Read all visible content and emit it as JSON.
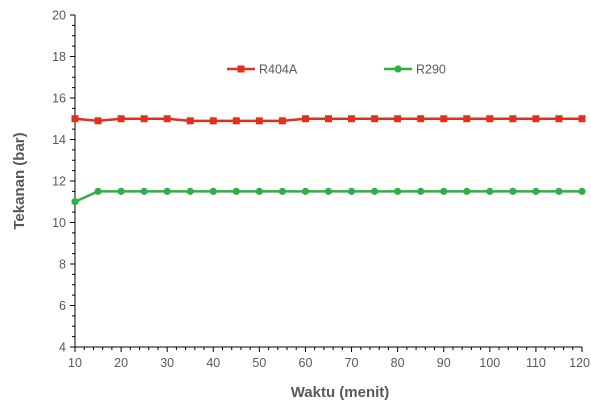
{
  "chart_data": {
    "type": "line",
    "title": "",
    "xlabel": "Waktu (menit)",
    "ylabel": "Tekanan (bar)",
    "x": [
      10,
      15,
      20,
      25,
      30,
      35,
      40,
      45,
      50,
      55,
      60,
      65,
      70,
      75,
      80,
      85,
      90,
      95,
      100,
      105,
      110,
      115,
      120
    ],
    "xlim": [
      10,
      120
    ],
    "ylim": [
      4,
      20
    ],
    "xticks": [
      "10",
      "20",
      "30",
      "40",
      "50",
      "60",
      "70",
      "80",
      "90",
      "100",
      "110",
      "120"
    ],
    "yticks": [
      "4",
      "6",
      "8",
      "10",
      "12",
      "14",
      "16",
      "18",
      "20"
    ],
    "grid": false,
    "legend_position": "top-center",
    "series": [
      {
        "name": "R404A",
        "color": "#e0301e",
        "marker": "square",
        "values": [
          15.0,
          14.9,
          15.0,
          15.0,
          15.0,
          14.9,
          14.9,
          14.9,
          14.9,
          14.9,
          15.0,
          15.0,
          15.0,
          15.0,
          15.0,
          15.0,
          15.0,
          15.0,
          15.0,
          15.0,
          15.0,
          15.0,
          15.0
        ]
      },
      {
        "name": "R290",
        "color": "#2fb045",
        "marker": "circle",
        "values": [
          11.0,
          11.5,
          11.5,
          11.5,
          11.5,
          11.5,
          11.5,
          11.5,
          11.5,
          11.5,
          11.5,
          11.5,
          11.5,
          11.5,
          11.5,
          11.5,
          11.5,
          11.5,
          11.5,
          11.5,
          11.5,
          11.5,
          11.5
        ]
      }
    ]
  }
}
